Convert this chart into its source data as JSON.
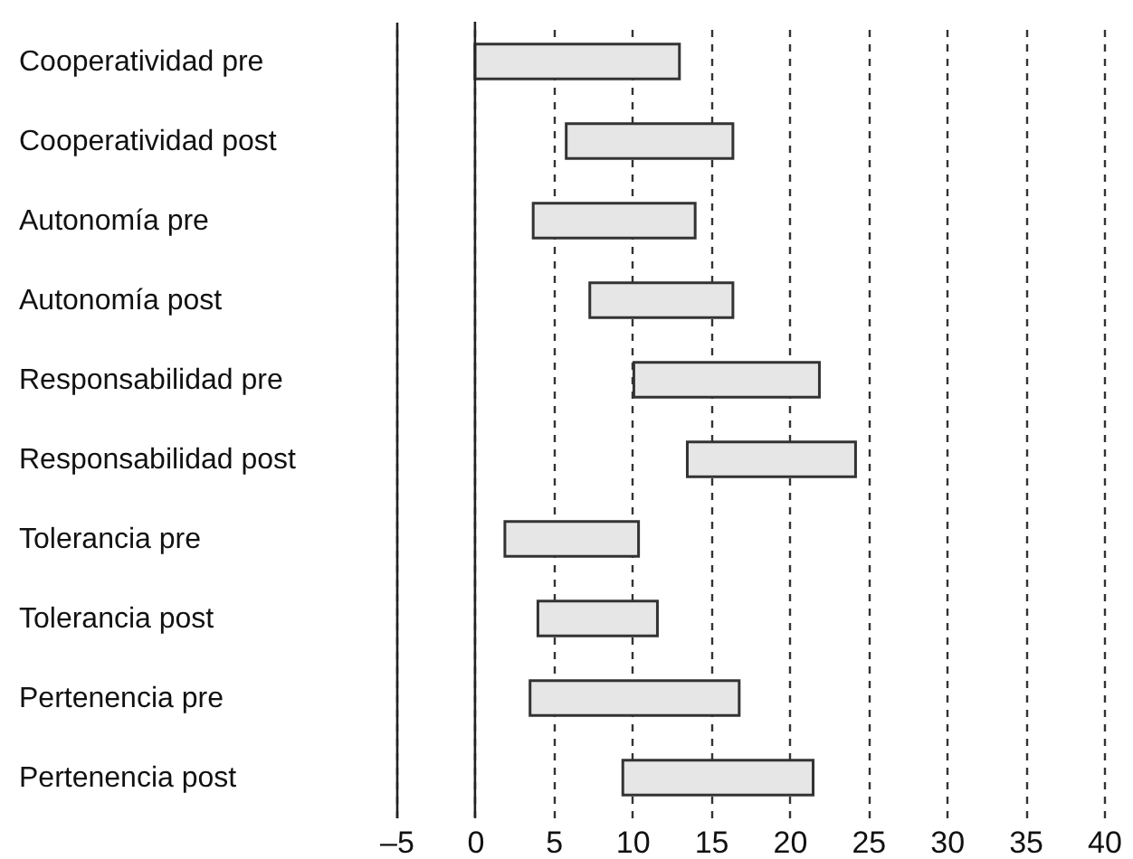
{
  "chart_data": {
    "type": "bar",
    "orientation": "horizontal",
    "categories": [
      "Cooperatividad pre",
      "Cooperatividad post",
      "Autonomía pre",
      "Autonomía post",
      "Responsabilidad pre",
      "Responsabilidad post",
      "Tolerancia pre",
      "Tolerancia post",
      "Pertenencia pre",
      "Pertenencia  post"
    ],
    "base": [
      0,
      5.8,
      3.7,
      7.3,
      10.1,
      13.5,
      1.9,
      4.0,
      3.5,
      9.4
    ],
    "values": [
      13.0,
      10.6,
      10.3,
      9.1,
      11.8,
      10.7,
      8.5,
      7.6,
      13.3,
      12.1
    ],
    "color": "#e6e6e6",
    "xlim": [
      -5,
      40
    ],
    "xticks": [
      {
        "value": -5,
        "label": "–5"
      },
      0,
      5,
      10,
      15,
      20,
      25,
      30,
      35,
      40
    ],
    "grid": "x",
    "line_style": "dashed",
    "ref_lines": [
      {
        "axis": "x",
        "value": 0,
        "color": "#222222",
        "line_style": "solid"
      }
    ]
  }
}
